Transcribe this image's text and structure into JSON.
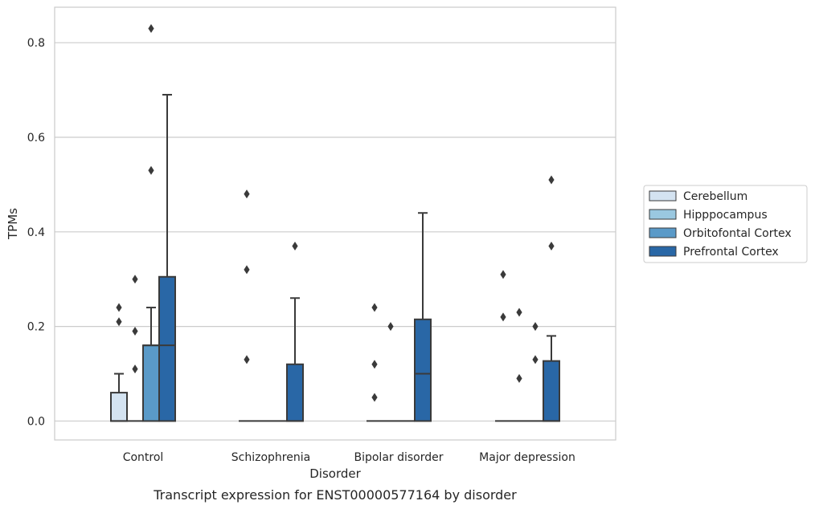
{
  "chart_data": {
    "type": "box",
    "caption": "Transcript expression for ENST00000577164 by disorder",
    "xlabel": "Disorder",
    "ylabel": "TPMs",
    "ylim": [
      -0.04,
      0.875
    ],
    "yticks": [
      0.0,
      0.2,
      0.4,
      0.6,
      0.8
    ],
    "ytick_labels": [
      "0.0",
      "0.2",
      "0.4",
      "0.6",
      "0.8"
    ],
    "grid": true,
    "legend_position": "right",
    "categories": [
      "Control",
      "Schizophrenia",
      "Bipolar disorder",
      "Major depression"
    ],
    "series": [
      {
        "name": "Cerebellum",
        "color": "#d4e3f1",
        "boxes": [
          {
            "q1": 0.0,
            "median": 0.0,
            "q3": 0.06,
            "whisker_low": 0.0,
            "whisker_high": 0.1,
            "outliers": [
              0.21,
              0.24
            ]
          },
          {
            "q1": 0.0,
            "median": 0.0,
            "q3": 0.0,
            "whisker_low": 0.0,
            "whisker_high": 0.0,
            "outliers": [
              0.13,
              0.32,
              0.48
            ]
          },
          {
            "q1": 0.0,
            "median": 0.0,
            "q3": 0.0,
            "whisker_low": 0.0,
            "whisker_high": 0.0,
            "outliers": [
              0.05,
              0.12,
              0.24
            ]
          },
          {
            "q1": 0.0,
            "median": 0.0,
            "q3": 0.0,
            "whisker_low": 0.0,
            "whisker_high": 0.0,
            "outliers": [
              0.22,
              0.31
            ]
          }
        ]
      },
      {
        "name": "Hipppocampus",
        "color": "#9ac8e0",
        "boxes": [
          {
            "q1": 0.0,
            "median": 0.0,
            "q3": 0.0,
            "whisker_low": 0.0,
            "whisker_high": 0.0,
            "outliers": [
              0.11,
              0.19,
              0.3
            ]
          },
          {
            "q1": 0.0,
            "median": 0.0,
            "q3": 0.0,
            "whisker_low": 0.0,
            "whisker_high": 0.0,
            "outliers": []
          },
          {
            "q1": 0.0,
            "median": 0.0,
            "q3": 0.0,
            "whisker_low": 0.0,
            "whisker_high": 0.0,
            "outliers": [
              0.2
            ]
          },
          {
            "q1": 0.0,
            "median": 0.0,
            "q3": 0.0,
            "whisker_low": 0.0,
            "whisker_high": 0.0,
            "outliers": [
              0.09,
              0.23
            ]
          }
        ]
      },
      {
        "name": "Orbitofontal Cortex",
        "color": "#5a9ac8",
        "boxes": [
          {
            "q1": 0.0,
            "median": 0.16,
            "q3": 0.16,
            "whisker_low": 0.0,
            "whisker_high": 0.24,
            "outliers": [
              0.53,
              0.83
            ]
          },
          {
            "q1": 0.0,
            "median": 0.0,
            "q3": 0.0,
            "whisker_low": 0.0,
            "whisker_high": 0.0,
            "outliers": []
          },
          {
            "q1": 0.0,
            "median": 0.0,
            "q3": 0.0,
            "whisker_low": 0.0,
            "whisker_high": 0.0,
            "outliers": []
          },
          {
            "q1": 0.0,
            "median": 0.0,
            "q3": 0.0,
            "whisker_low": 0.0,
            "whisker_high": 0.0,
            "outliers": [
              0.13,
              0.2
            ]
          }
        ]
      },
      {
        "name": "Prefrontal Cortex",
        "color": "#2967a6",
        "boxes": [
          {
            "q1": 0.0,
            "median": 0.16,
            "q3": 0.305,
            "whisker_low": 0.0,
            "whisker_high": 0.69,
            "outliers": []
          },
          {
            "q1": 0.0,
            "median": 0.0,
            "q3": 0.12,
            "whisker_low": 0.0,
            "whisker_high": 0.26,
            "outliers": [
              0.37
            ]
          },
          {
            "q1": 0.0,
            "median": 0.1,
            "q3": 0.215,
            "whisker_low": 0.0,
            "whisker_high": 0.44,
            "outliers": []
          },
          {
            "q1": 0.0,
            "median": 0.0,
            "q3": 0.127,
            "whisker_low": 0.0,
            "whisker_high": 0.18,
            "outliers": [
              0.37,
              0.51
            ]
          }
        ]
      }
    ]
  }
}
